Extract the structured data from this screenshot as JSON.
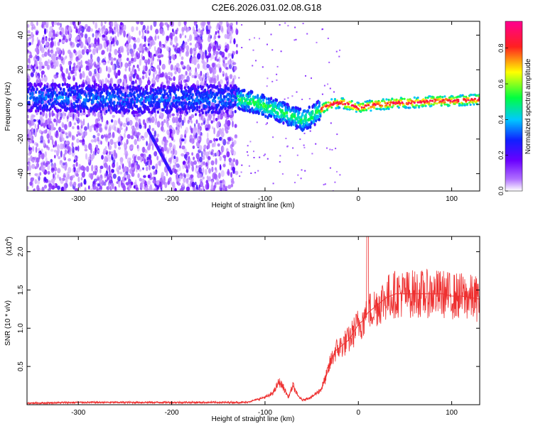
{
  "title": "C2E6.2026.031.02.08.G18",
  "chart_data": [
    {
      "type": "heatmap",
      "xlabel": "Height of straight line (km)",
      "ylabel": "Frequency (Hz)",
      "xlim": [
        -355,
        130
      ],
      "ylim": [
        -50,
        48
      ],
      "xticks": [
        -300,
        -200,
        -100,
        0,
        100
      ],
      "yticks": [
        -40,
        -20,
        0,
        20,
        40
      ],
      "colorbar": {
        "label": "Normalized spectral amplitude",
        "range": [
          0.0,
          0.95
        ],
        "ticks": [
          0.0,
          0.2,
          0.4,
          0.6,
          0.8
        ],
        "tick_labels": [
          "0.0",
          "0.2",
          "0.4",
          "0.6",
          "0.8"
        ],
        "stops": [
          "#ffffff",
          "#8a00ff",
          "#1020ff",
          "#00d0ff",
          "#00ff40",
          "#ffff00",
          "#ff2020",
          "#ff00a0"
        ]
      },
      "ridge": {
        "x": [
          -355,
          -300,
          -250,
          -200,
          -150,
          -130,
          -110,
          -90,
          -70,
          -60,
          -50,
          -40,
          -30,
          -20,
          -10,
          0,
          10,
          20,
          30,
          40,
          60,
          80,
          100,
          130
        ],
        "y": [
          4,
          4,
          3,
          3,
          3,
          3,
          1,
          -3,
          -7,
          -9,
          -7,
          -3,
          0,
          1,
          0,
          -2,
          -1,
          0,
          0,
          1,
          1,
          2,
          2,
          3
        ]
      },
      "grid": false
    },
    {
      "type": "line",
      "xlabel": "Height of straight line (km)",
      "ylabel": "SNR (10 * v/v)",
      "y_multiplier_label": "(x10",
      "y_multiplier_exp": "4",
      "xlim": [
        -355,
        130
      ],
      "ylim": [
        0,
        2.2
      ],
      "xticks": [
        -300,
        -200,
        -100,
        0,
        100
      ],
      "yticks": [
        0.5,
        1.0,
        1.5,
        2.0
      ],
      "ytick_labels": [
        "0.5",
        "1.0",
        "1.5",
        "2.0"
      ],
      "series": [
        {
          "color": "#ee3030",
          "x": [
            -355,
            -300,
            -250,
            -200,
            -150,
            -120,
            -105,
            -95,
            -90,
            -85,
            -80,
            -75,
            -70,
            -65,
            -60,
            -55,
            -50,
            -45,
            -40,
            -35,
            -30,
            -25,
            -20,
            -15,
            -10,
            -5,
            0,
            5,
            10,
            15,
            20,
            25,
            30,
            40,
            50,
            60,
            70,
            80,
            90,
            100,
            110,
            120,
            130
          ],
          "y": [
            0.02,
            0.03,
            0.03,
            0.03,
            0.03,
            0.03,
            0.08,
            0.12,
            0.18,
            0.3,
            0.22,
            0.1,
            0.25,
            0.12,
            0.06,
            0.08,
            0.1,
            0.15,
            0.2,
            0.35,
            0.55,
            0.7,
            0.75,
            0.8,
            0.85,
            0.95,
            1.05,
            1.1,
            1.2,
            1.25,
            1.3,
            1.35,
            1.4,
            1.45,
            1.45,
            1.45,
            1.45,
            1.45,
            1.45,
            1.42,
            1.42,
            1.4,
            1.38
          ]
        }
      ],
      "grid": false
    }
  ]
}
